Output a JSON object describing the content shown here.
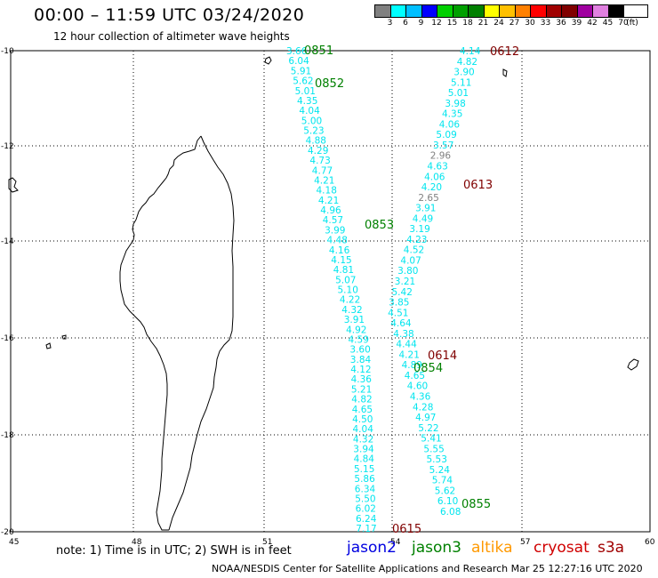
{
  "header": {
    "title": "00:00 – 11:59 UTC 03/24/2020",
    "subtitle": "12 hour collection of altimeter wave heights"
  },
  "legend": {
    "colors": [
      "#808080",
      "#00ffff",
      "#00bfff",
      "#0000ff",
      "#00d000",
      "#00a000",
      "#008000",
      "#ffff00",
      "#ffc000",
      "#ff8000",
      "#ff0000",
      "#a00000",
      "#800000",
      "#a000a0",
      "#e080e0",
      "#000000"
    ],
    "ticks": [
      "3",
      "6",
      "9",
      "12",
      "15",
      "18",
      "21",
      "24",
      "27",
      "30",
      "33",
      "36",
      "39",
      "42",
      "45",
      "70",
      "(ft)"
    ]
  },
  "axes": {
    "x_ticks": [
      "45",
      "48",
      "51",
      "54",
      "57",
      "60"
    ],
    "y_ticks": [
      "-10",
      "-12",
      "-14",
      "-16",
      "-18",
      "-20"
    ]
  },
  "tracks": {
    "track_1": {
      "color": "#00e5ee",
      "values": [
        "3.66",
        "6.04",
        "5.91",
        "5.62",
        "5.01",
        "4.35",
        "4.04",
        "5.00",
        "5.23",
        "4.88",
        "4.29",
        "4.73",
        "4.77",
        "4.21",
        "4.18",
        "4.21",
        "4.96",
        "4.57",
        "3.99",
        "4.48",
        "4.16",
        "4.15",
        "4.81",
        "5.07",
        "5.10",
        "4.22",
        "4.32",
        "3.91",
        "4.92",
        "4.59",
        "3.60",
        "3.84",
        "4.12",
        "4.36",
        "5.21",
        "4.82",
        "4.65",
        "4.50",
        "4.04",
        "4.32",
        "3.94",
        "4.84",
        "5.15",
        "5.86",
        "6.34",
        "5.50",
        "6.02",
        "6.24",
        "7.17"
      ]
    },
    "track_2": {
      "color": "#00e5ee",
      "gray_color": "#808080",
      "values": [
        "4.14",
        "4.82",
        "3.90",
        "5.11",
        "5.01",
        "3.98",
        "4.35",
        "4.06",
        "5.09",
        "3.57",
        "2.96",
        "4.63",
        "4.06",
        "4.20",
        "2.65",
        "3.91",
        "4.49",
        "3.19",
        "4.23",
        "4.52",
        "4.07",
        "3.80",
        "3.21",
        "5.42",
        "3.85",
        "4.51",
        "4.64",
        "4.38",
        "4.44",
        "4.21",
        "4.89",
        "4.65",
        "4.60",
        "4.36",
        "4.28",
        "4.97",
        "5.22",
        "5.41",
        "5.55",
        "5.53",
        "5.24",
        "5.74",
        "5.62",
        "6.10",
        "6.08"
      ]
    },
    "time_labels": [
      {
        "text": "0851",
        "color": "#008000"
      },
      {
        "text": "0852",
        "color": "#008000"
      },
      {
        "text": "0853",
        "color": "#008000"
      },
      {
        "text": "0854",
        "color": "#008000"
      },
      {
        "text": "0855",
        "color": "#008000"
      },
      {
        "text": "0612",
        "color": "#800000"
      },
      {
        "text": "0613",
        "color": "#800000"
      },
      {
        "text": "0614",
        "color": "#800000"
      },
      {
        "text": "0615",
        "color": "#800000"
      }
    ]
  },
  "footer": {
    "note": "note: 1) Time is in UTC; 2) SWH is in feet",
    "satellites": [
      {
        "name": "jason2",
        "color": "#0000e0"
      },
      {
        "name": "jason3",
        "color": "#008000"
      },
      {
        "name": "altika",
        "color": "#ff9900"
      },
      {
        "name": "cryosat",
        "color": "#d00000"
      },
      {
        "name": "s3a",
        "color": "#a00000"
      }
    ],
    "credit": "NOAA/NESDIS Center for Satellite Applications and Research    Mar 25 12:27:16 UTC 2020"
  }
}
